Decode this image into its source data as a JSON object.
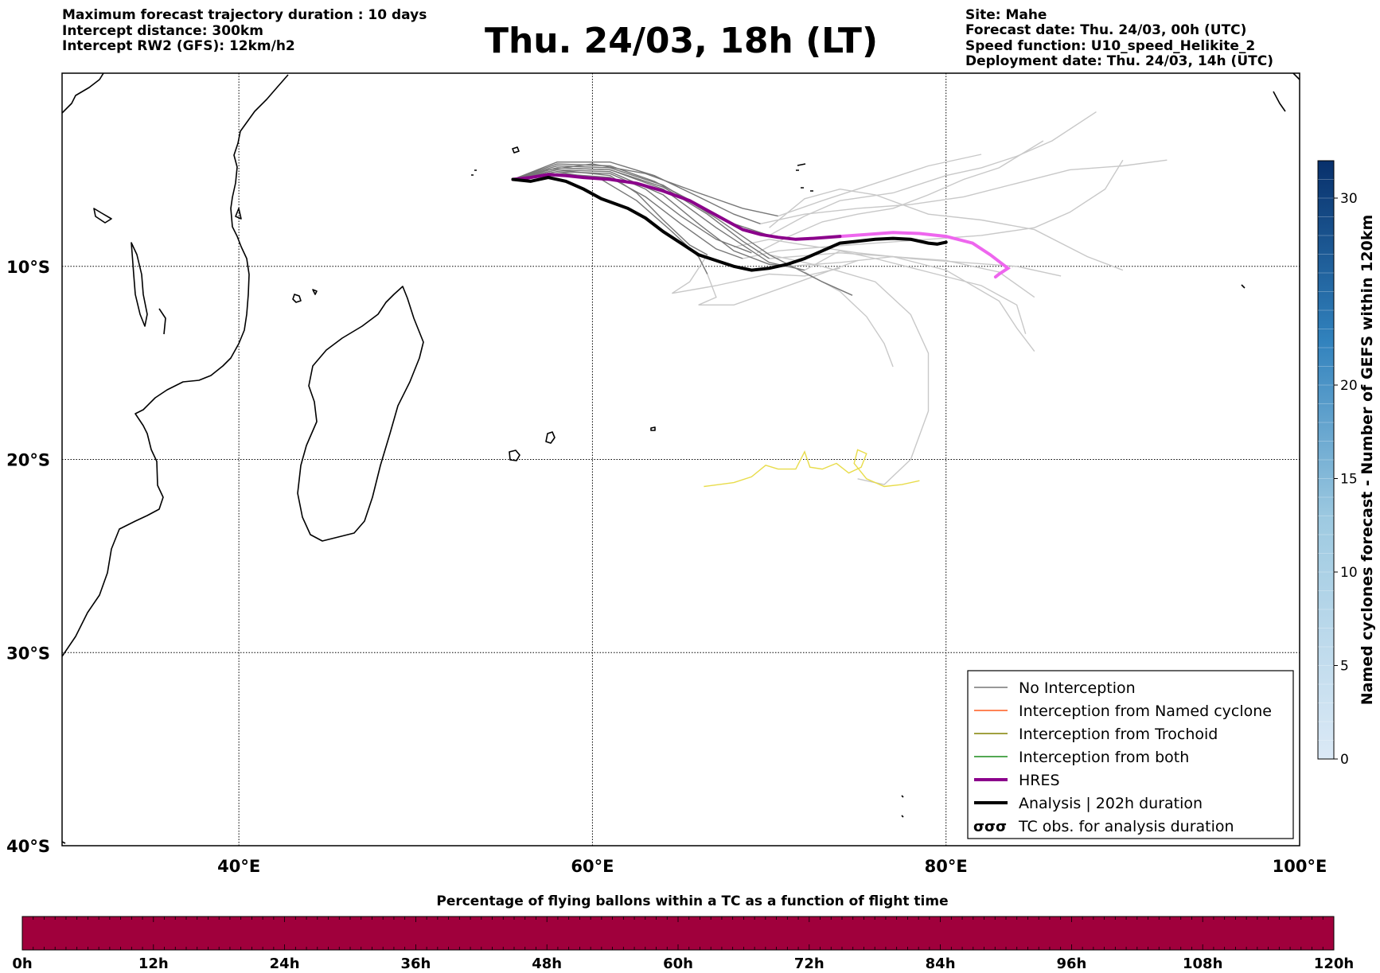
{
  "header": {
    "left_lines": [
      "Maximum forecast trajectory duration : 10 days",
      "Intercept distance: 300km",
      "Intercept RW2 (GFS):  12km/h2"
    ],
    "title": "Thu. 24/03, 18h (LT)",
    "right_lines": [
      "Site: Mahe",
      "Forecast date: Thu. 24/03, 00h (UTC)",
      "Speed function: U10_speed_Helikite_2",
      "Deployment date: Thu. 24/03, 14h (UTC)"
    ]
  },
  "map": {
    "lon_range": [
      30,
      100
    ],
    "lat_range": [
      -40,
      0
    ],
    "lon_ticks": [
      {
        "value": 40,
        "label": "40°E"
      },
      {
        "value": 60,
        "label": "60°E"
      },
      {
        "value": 80,
        "label": "80°E"
      },
      {
        "value": 100,
        "label": "100°E"
      }
    ],
    "lat_ticks": [
      {
        "value": -10,
        "label": "10°S"
      },
      {
        "value": -20,
        "label": "20°S"
      },
      {
        "value": -30,
        "label": "30°S"
      },
      {
        "value": -40,
        "label": "40°S"
      }
    ],
    "colors": {
      "no_interception": "#777777",
      "late_members": "#c8c8c8",
      "named_cyclone": "#ff5a1f",
      "trochoid": "#808000",
      "both": "#1a8c1a",
      "hres": "#8b008b",
      "hres_late": "#ee66ee",
      "analysis": "#000000",
      "tc_obs": "#e8dc4a"
    },
    "analysis_track": [
      [
        55.5,
        -5.5
      ],
      [
        56.5,
        -5.6
      ],
      [
        57.5,
        -5.4
      ],
      [
        58.5,
        -5.6
      ],
      [
        59.5,
        -6.0
      ],
      [
        60.5,
        -6.5
      ],
      [
        62,
        -7.0
      ],
      [
        63,
        -7.5
      ],
      [
        64,
        -8.2
      ],
      [
        65,
        -8.8
      ],
      [
        66,
        -9.4
      ],
      [
        67,
        -9.7
      ],
      [
        68,
        -10.0
      ],
      [
        69,
        -10.2
      ],
      [
        70,
        -10.1
      ],
      [
        71,
        -9.9
      ],
      [
        72,
        -9.6
      ],
      [
        73,
        -9.2
      ],
      [
        74,
        -8.8
      ],
      [
        75,
        -8.7
      ],
      [
        76,
        -8.6
      ],
      [
        77,
        -8.55
      ],
      [
        78,
        -8.6
      ],
      [
        79,
        -8.8
      ],
      [
        79.5,
        -8.85
      ],
      [
        80,
        -8.75
      ]
    ],
    "hres_track": [
      [
        55.5,
        -5.5
      ],
      [
        56.5,
        -5.4
      ],
      [
        57.5,
        -5.25
      ],
      [
        58.5,
        -5.3
      ],
      [
        59.5,
        -5.4
      ],
      [
        61,
        -5.5
      ],
      [
        62.5,
        -5.7
      ],
      [
        64,
        -6.1
      ],
      [
        65.5,
        -6.6
      ],
      [
        66.5,
        -7.1
      ],
      [
        67.5,
        -7.6
      ],
      [
        68.5,
        -8.1
      ],
      [
        69.5,
        -8.35
      ],
      [
        70.5,
        -8.5
      ],
      [
        71.5,
        -8.6
      ],
      [
        72.5,
        -8.55
      ],
      [
        74,
        -8.45
      ],
      [
        75.5,
        -8.35
      ],
      [
        77,
        -8.25
      ],
      [
        78.5,
        -8.3
      ],
      [
        80,
        -8.45
      ],
      [
        81.5,
        -8.8
      ],
      [
        82.5,
        -9.4
      ],
      [
        83.5,
        -10.1
      ],
      [
        83,
        -10.4
      ],
      [
        82.8,
        -10.55
      ]
    ],
    "hres_late_from_index": 16,
    "ensemble_members": [
      [
        [
          55.5,
          -5.5
        ],
        [
          58,
          -4.8
        ],
        [
          61,
          -4.9
        ],
        [
          64,
          -5.8
        ],
        [
          67,
          -7.5
        ],
        [
          70,
          -9.4
        ],
        [
          73,
          -10.8
        ],
        [
          74.7,
          -11.5
        ]
      ],
      [
        [
          55.5,
          -5.5
        ],
        [
          58,
          -4.9
        ],
        [
          61,
          -5.0
        ],
        [
          64,
          -6.0
        ],
        [
          67,
          -8.0
        ],
        [
          70,
          -9.8
        ],
        [
          72,
          -10.2
        ]
      ],
      [
        [
          55.5,
          -5.5
        ],
        [
          58,
          -5.0
        ],
        [
          61,
          -5.1
        ],
        [
          64,
          -6.3
        ],
        [
          66,
          -7.8
        ],
        [
          68,
          -9.2
        ],
        [
          70,
          -9.9
        ],
        [
          71,
          -10.0
        ]
      ],
      [
        [
          55.5,
          -5.5
        ],
        [
          58,
          -5.1
        ],
        [
          61,
          -5.2
        ],
        [
          63,
          -6.0
        ],
        [
          65,
          -7.4
        ],
        [
          67,
          -8.6
        ],
        [
          69,
          -9.3
        ]
      ],
      [
        [
          55.5,
          -5.5
        ],
        [
          58,
          -4.7
        ],
        [
          61,
          -4.8
        ],
        [
          63.5,
          -5.6
        ],
        [
          66,
          -6.8
        ],
        [
          68,
          -7.8
        ],
        [
          70,
          -8.4
        ]
      ],
      [
        [
          55.5,
          -5.5
        ],
        [
          58,
          -5.2
        ],
        [
          61,
          -5.4
        ],
        [
          63,
          -6.4
        ],
        [
          65,
          -7.8
        ],
        [
          67,
          -9.1
        ],
        [
          68.5,
          -9.6
        ]
      ],
      [
        [
          55.5,
          -5.5
        ],
        [
          58,
          -4.6
        ],
        [
          61,
          -4.6
        ],
        [
          63.5,
          -5.3
        ],
        [
          66,
          -6.4
        ],
        [
          68,
          -7.3
        ],
        [
          69.5,
          -7.8
        ]
      ],
      [
        [
          55.5,
          -5.5
        ],
        [
          58,
          -5.0
        ],
        [
          61,
          -5.3
        ],
        [
          62.5,
          -6.2
        ],
        [
          64,
          -7.6
        ],
        [
          65.5,
          -8.9
        ],
        [
          66.5,
          -9.4
        ]
      ],
      [
        [
          55.5,
          -5.5
        ],
        [
          57.5,
          -5.0
        ],
        [
          60,
          -4.7
        ],
        [
          63,
          -5.2
        ],
        [
          66,
          -6.2
        ],
        [
          68.5,
          -7.0
        ],
        [
          70.5,
          -7.4
        ]
      ],
      [
        [
          55.5,
          -5.5
        ],
        [
          58,
          -5.1
        ],
        [
          60.5,
          -5.5
        ],
        [
          62.5,
          -6.6
        ],
        [
          64.5,
          -8.2
        ],
        [
          66,
          -9.5
        ],
        [
          66.5,
          -10.4
        ]
      ],
      [
        [
          55.5,
          -5.5
        ],
        [
          58,
          -4.9
        ],
        [
          61,
          -5.0
        ],
        [
          64,
          -5.9
        ],
        [
          66.5,
          -7.3
        ],
        [
          68.5,
          -8.7
        ],
        [
          70,
          -9.6
        ]
      ]
    ],
    "late_members": [
      [
        [
          70,
          -9.4
        ],
        [
          73,
          -10.0
        ],
        [
          76,
          -10.8
        ],
        [
          78,
          -12.5
        ],
        [
          79,
          -14.5
        ],
        [
          79,
          -17.5
        ],
        [
          78,
          -20
        ],
        [
          76.5,
          -21.3
        ],
        [
          75,
          -21.0
        ]
      ],
      [
        [
          72,
          -10.2
        ],
        [
          74,
          -9.2
        ],
        [
          76,
          -9.6
        ],
        [
          79,
          -10.3
        ],
        [
          82,
          -11.0
        ],
        [
          84,
          -12.0
        ],
        [
          84.5,
          -13.5
        ]
      ],
      [
        [
          71,
          -10.0
        ],
        [
          74,
          -9.8
        ],
        [
          77,
          -9.5
        ],
        [
          80,
          -9.7
        ],
        [
          83,
          -10.3
        ],
        [
          85,
          -11.6
        ]
      ],
      [
        [
          69.3,
          -9.3
        ],
        [
          71,
          -8.5
        ],
        [
          73,
          -7.7
        ],
        [
          75,
          -7.3
        ],
        [
          77,
          -7.0
        ],
        [
          79,
          -6.3
        ],
        [
          81,
          -5.5
        ],
        [
          83,
          -4.9
        ],
        [
          85.5,
          -3.5
        ]
      ],
      [
        [
          70,
          -8.4
        ],
        [
          72,
          -7.4
        ],
        [
          74,
          -6.6
        ],
        [
          77,
          -6.2
        ],
        [
          80,
          -5.3
        ],
        [
          82,
          -4.9
        ],
        [
          84,
          -4.3
        ],
        [
          86,
          -3.5
        ],
        [
          88.5,
          -2.0
        ]
      ],
      [
        [
          68.5,
          -9.6
        ],
        [
          70.5,
          -9.2
        ],
        [
          73,
          -9.0
        ],
        [
          76,
          -8.8
        ],
        [
          79,
          -8.6
        ],
        [
          82,
          -8.4
        ],
        [
          85,
          -8.0
        ],
        [
          87,
          -7.2
        ],
        [
          89,
          -6.0
        ],
        [
          90,
          -4.5
        ]
      ],
      [
        [
          69.5,
          -7.8
        ],
        [
          72,
          -7.3
        ],
        [
          75,
          -7.0
        ],
        [
          78,
          -6.8
        ],
        [
          81,
          -6.4
        ],
        [
          84,
          -5.7
        ],
        [
          87,
          -5.0
        ],
        [
          90,
          -4.8
        ],
        [
          92.5,
          -4.5
        ]
      ],
      [
        [
          66.5,
          -9.4
        ],
        [
          65.5,
          -10.8
        ],
        [
          64.5,
          -11.4
        ],
        [
          67,
          -11.0
        ],
        [
          70,
          -10.4
        ],
        [
          72,
          -10.5
        ],
        [
          74,
          -10.1
        ]
      ],
      [
        [
          70.5,
          -7.4
        ],
        [
          73,
          -6.6
        ],
        [
          76,
          -5.7
        ],
        [
          79,
          -4.8
        ],
        [
          82,
          -4.2
        ]
      ],
      [
        [
          66.5,
          -10.4
        ],
        [
          67,
          -11.6
        ],
        [
          66,
          -12.0
        ],
        [
          68,
          -12.0
        ],
        [
          72,
          -10.7
        ],
        [
          75,
          -9.7
        ]
      ],
      [
        [
          70,
          -9.6
        ],
        [
          74,
          -9.3
        ],
        [
          77,
          -9.5
        ],
        [
          80,
          -10.2
        ],
        [
          83,
          -11.8
        ],
        [
          84,
          -13.2
        ],
        [
          85,
          -14.4
        ]
      ],
      [
        [
          72,
          -10.3
        ],
        [
          74,
          -11.3
        ],
        [
          75.5,
          -12.6
        ],
        [
          76.5,
          -14.0
        ],
        [
          77,
          -15.2
        ]
      ],
      [
        [
          70,
          -8.0
        ],
        [
          72,
          -6.5
        ],
        [
          74,
          -6.0
        ],
        [
          76,
          -6.3
        ],
        [
          79,
          -7.3
        ],
        [
          82,
          -7.6
        ],
        [
          85,
          -8.1
        ],
        [
          88,
          -9.5
        ],
        [
          90,
          -10.2
        ]
      ],
      [
        [
          68,
          -9.0
        ],
        [
          70,
          -8.6
        ],
        [
          72,
          -8.9
        ],
        [
          75,
          -9.3
        ],
        [
          78,
          -9.6
        ],
        [
          81,
          -9.8
        ],
        [
          84,
          -10.0
        ],
        [
          86.5,
          -10.5
        ]
      ]
    ],
    "tc_obs_track": [
      [
        66.3,
        -21.4
      ],
      [
        68,
        -21.2
      ],
      [
        69,
        -20.9
      ],
      [
        69.8,
        -20.3
      ],
      [
        70.5,
        -20.5
      ],
      [
        71.5,
        -20.5
      ],
      [
        72,
        -19.6
      ],
      [
        72.3,
        -20.4
      ],
      [
        73,
        -20.5
      ],
      [
        73.8,
        -20.2
      ],
      [
        74.5,
        -20.7
      ],
      [
        75.2,
        -20.4
      ],
      [
        75.5,
        -19.7
      ],
      [
        75,
        -19.5
      ],
      [
        74.8,
        -20.2
      ],
      [
        75.5,
        -21.0
      ],
      [
        76.5,
        -21.4
      ],
      [
        77.5,
        -21.3
      ],
      [
        78.5,
        -21.1
      ]
    ]
  },
  "legend": {
    "items": [
      {
        "label": "No Interception",
        "color": "#777777",
        "style": "thin"
      },
      {
        "label": "Interception from Named cyclone",
        "color": "#ff5a1f",
        "style": "thin"
      },
      {
        "label": "Interception from Trochoid",
        "color": "#808000",
        "style": "thin"
      },
      {
        "label": "Interception from both",
        "color": "#1a8c1a",
        "style": "thin"
      },
      {
        "label": "HRES",
        "color": "#8b008b",
        "style": "thick"
      },
      {
        "label": "Analysis | 202h duration",
        "color": "#000000",
        "style": "thick"
      },
      {
        "label": "TC obs. for analysis duration",
        "color": "#000000",
        "style": "symbol",
        "symbol": "σσσ"
      }
    ]
  },
  "right_colorbar": {
    "label": "Named cyclones forecast - Number of GEFS within 120km",
    "range": [
      0,
      32
    ],
    "tick_values": [
      0,
      5,
      10,
      15,
      20,
      30
    ],
    "color_low": "#dbe9f6",
    "color_high": "#08306b"
  },
  "bottom_colorbar": {
    "title": "Percentage of flying ballons within a TC as a function of flight time",
    "fill_color": "#a0003c",
    "tick_labels": [
      "0h",
      "12h",
      "24h",
      "36h",
      "48h",
      "60h",
      "72h",
      "84h",
      "96h",
      "108h",
      "120h"
    ]
  }
}
